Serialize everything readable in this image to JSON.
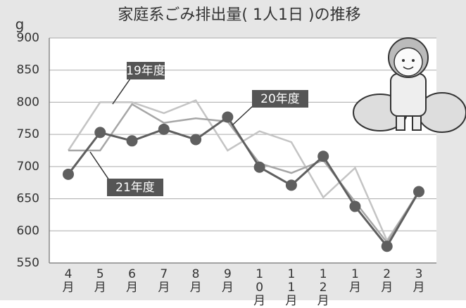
{
  "chart_data": {
    "type": "line",
    "title": "家庭系ごみ排出量( 1人1日 )の推移",
    "y_label": "g",
    "categories": [
      "4月",
      "5月",
      "6月",
      "7月",
      "8月",
      "9月",
      "10月",
      "11月",
      "12月",
      "1月",
      "2月",
      "3月"
    ],
    "series": [
      {
        "name": "19年度",
        "color": "#c4c4c4",
        "values": [
          725,
          800,
          800,
          783,
          803,
          725,
          755,
          738,
          652,
          698,
          585,
          660
        ]
      },
      {
        "name": "20年度",
        "color": "#a6a6a6",
        "values": [
          725,
          725,
          797,
          768,
          775,
          770,
          705,
          690,
          710,
          645,
          582,
          662
        ]
      },
      {
        "name": "21年度",
        "color": "#5f5f5f",
        "values": [
          688,
          753,
          740,
          758,
          742,
          777,
          699,
          671,
          716,
          638,
          576,
          661
        ]
      }
    ],
    "ylim": [
      550,
      900
    ],
    "yticks": [
      550,
      600,
      650,
      700,
      750,
      800,
      850,
      900
    ],
    "grid": true
  }
}
